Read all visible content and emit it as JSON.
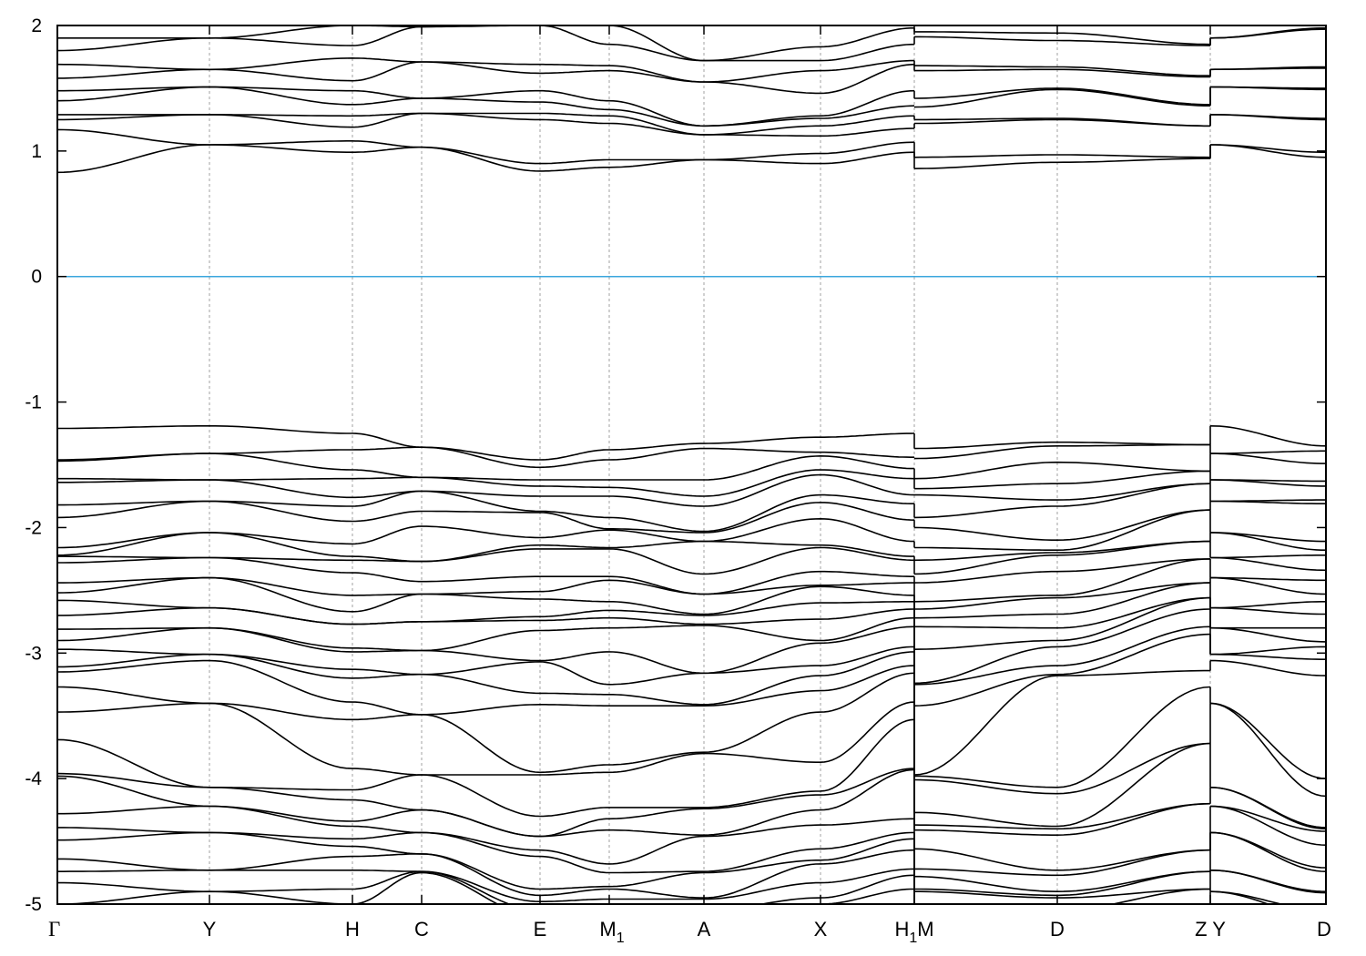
{
  "chart_data": {
    "type": "line",
    "title": "",
    "xlabel": "",
    "ylabel": "",
    "ylim": [
      -5,
      2
    ],
    "xlim": [
      0,
      13.93
    ],
    "grid": "vertical dotted lines at high-symmetry points",
    "legend": "none",
    "band_color": "#000000",
    "fermi_level": 0,
    "fermi_color": "#3aa6dd",
    "grid_color": "#a0a0a0",
    "yticks": [
      {
        "value": 2,
        "label": "2"
      },
      {
        "value": 1,
        "label": "1"
      },
      {
        "value": 0,
        "label": "0"
      },
      {
        "value": -1,
        "label": "-1"
      },
      {
        "value": -2,
        "label": "-2"
      },
      {
        "value": -3,
        "label": "-3"
      },
      {
        "value": -4,
        "label": "-4"
      },
      {
        "value": -5,
        "label": "-5"
      }
    ],
    "xticks": [
      {
        "k": 0.0,
        "label": "Γ",
        "sub": "",
        "suffix": ""
      },
      {
        "k": 1.67,
        "label": "Y",
        "sub": "",
        "suffix": ""
      },
      {
        "k": 3.24,
        "label": "H",
        "sub": "",
        "suffix": ""
      },
      {
        "k": 4.0,
        "label": "C",
        "sub": "",
        "suffix": ""
      },
      {
        "k": 5.3,
        "label": "E",
        "sub": "",
        "suffix": ""
      },
      {
        "k": 6.06,
        "label": "M",
        "sub": "1",
        "suffix": ""
      },
      {
        "k": 7.1,
        "label": "A",
        "sub": "",
        "suffix": ""
      },
      {
        "k": 8.38,
        "label": "X",
        "sub": "",
        "suffix": ""
      },
      {
        "k": 9.41,
        "label": "H",
        "sub": "1",
        "suffix": "M"
      },
      {
        "k": 10.98,
        "label": "D",
        "sub": "",
        "suffix": ""
      },
      {
        "k": 12.66,
        "label": "Z",
        "sub": "",
        "suffix": "Y"
      },
      {
        "k": 13.93,
        "label": "D",
        "sub": "",
        "suffix": ""
      }
    ],
    "segments": [
      {
        "path": [
          "Γ",
          "Y",
          "H",
          "C",
          "E",
          "M1",
          "A",
          "X",
          "H1"
        ],
        "k": [
          0.0,
          1.67,
          3.24,
          4.0,
          5.3,
          6.06,
          7.1,
          8.38,
          9.41
        ],
        "conduction": [
          [
            0.83,
            1.17,
            1.25,
            1.29,
            1.4,
            1.48,
            1.58,
            1.69,
            1.8,
            1.9
          ],
          [
            1.05,
            1.05,
            1.29,
            1.29,
            1.51,
            1.51,
            1.65,
            1.65,
            1.9,
            1.9
          ],
          [
            0.99,
            1.08,
            1.19,
            1.28,
            1.37,
            1.48,
            1.56,
            1.74,
            1.84,
            2.0
          ],
          [
            1.03,
            1.03,
            1.3,
            1.3,
            1.42,
            1.42,
            1.71,
            1.71,
            1.99,
            1.99
          ],
          [
            0.84,
            0.9,
            1.25,
            1.3,
            1.39,
            1.48,
            1.62,
            1.69,
            2.0,
            2.05
          ],
          [
            0.87,
            0.93,
            1.22,
            1.28,
            1.33,
            1.4,
            1.64,
            1.68,
            1.85,
            2.0
          ],
          [
            0.93,
            0.93,
            1.13,
            1.13,
            1.2,
            1.2,
            1.55,
            1.55,
            1.72,
            1.72
          ],
          [
            0.9,
            0.98,
            1.12,
            1.2,
            1.26,
            1.28,
            1.46,
            1.64,
            1.72,
            1.83
          ],
          [
            0.99,
            1.07,
            1.18,
            1.28,
            1.36,
            1.48,
            1.69,
            1.72,
            1.85,
            1.98
          ]
        ],
        "valence": [
          [
            -1.21,
            -1.46,
            -1.47,
            -1.61,
            -1.64,
            -1.82,
            -1.92,
            -2.16,
            -2.22,
            -2.23,
            -2.28,
            -2.44,
            -2.52,
            -2.58,
            -2.7,
            -2.81,
            -2.9,
            -2.97,
            -3.11,
            -3.15,
            -3.27,
            -3.47,
            -3.69,
            -3.96,
            -3.98,
            -4.28,
            -4.39,
            -4.49,
            -4.64,
            -4.74,
            -4.83,
            -5.0
          ],
          [
            -1.19,
            -1.41,
            -1.41,
            -1.62,
            -1.62,
            -1.79,
            -1.79,
            -2.04,
            -2.04,
            -2.24,
            -2.24,
            -2.4,
            -2.4,
            -2.64,
            -2.64,
            -2.8,
            -2.8,
            -3.01,
            -3.01,
            -3.06,
            -3.4,
            -3.4,
            -4.07,
            -4.07,
            -4.22,
            -4.22,
            -4.43,
            -4.43,
            -4.73,
            -4.73,
            -4.9,
            -4.9
          ],
          [
            -1.25,
            -1.38,
            -1.54,
            -1.61,
            -1.76,
            -1.83,
            -1.95,
            -2.13,
            -2.23,
            -2.26,
            -2.36,
            -2.54,
            -2.67,
            -2.77,
            -2.77,
            -2.96,
            -2.99,
            -3.13,
            -3.2,
            -3.39,
            -3.53,
            -3.92,
            -4.09,
            -4.17,
            -4.34,
            -4.38,
            -4.48,
            -4.54,
            -4.62,
            -4.73,
            -4.88,
            -5.0
          ],
          [
            -1.36,
            -1.36,
            -1.6,
            -1.6,
            -1.71,
            -1.71,
            -1.87,
            -1.99,
            -2.27,
            -2.27,
            -2.43,
            -2.53,
            -2.53,
            -2.75,
            -2.75,
            -2.98,
            -2.98,
            -3.17,
            -3.17,
            -3.49,
            -3.49,
            -3.97,
            -3.97,
            -4.25,
            -4.25,
            -4.43,
            -4.43,
            -4.6,
            -4.6,
            -4.74,
            -4.74,
            -4.75
          ],
          [
            -1.46,
            -1.52,
            -1.62,
            -1.67,
            -1.75,
            -1.87,
            -1.88,
            -2.08,
            -2.14,
            -2.17,
            -2.39,
            -2.51,
            -2.57,
            -2.71,
            -2.74,
            -2.82,
            -3.06,
            -3.07,
            -3.32,
            -3.41,
            -3.95,
            -3.97,
            -4.3,
            -4.46,
            -4.46,
            -4.57,
            -4.62,
            -4.88,
            -4.93,
            -4.98,
            -5.05,
            -5.1
          ],
          [
            -1.38,
            -1.46,
            -1.62,
            -1.68,
            -1.75,
            -1.92,
            -2.01,
            -2.02,
            -2.16,
            -2.17,
            -2.39,
            -2.42,
            -2.59,
            -2.66,
            -2.72,
            -2.8,
            -2.99,
            -3.25,
            -3.33,
            -3.42,
            -3.89,
            -3.95,
            -4.23,
            -4.32,
            -4.41,
            -4.68,
            -4.75,
            -4.86,
            -4.88,
            -4.96,
            -5.05,
            -5.1
          ],
          [
            -1.33,
            -1.37,
            -1.62,
            -1.75,
            -1.83,
            -2.03,
            -2.04,
            -2.11,
            -2.11,
            -2.37,
            -2.53,
            -2.53,
            -2.69,
            -2.7,
            -2.77,
            -2.78,
            -3.16,
            -3.16,
            -3.41,
            -3.42,
            -3.79,
            -3.8,
            -4.23,
            -4.24,
            -4.45,
            -4.46,
            -4.74,
            -4.75,
            -4.95,
            -4.96,
            -5.05,
            -5.1
          ],
          [
            -1.28,
            -1.4,
            -1.43,
            -1.54,
            -1.58,
            -1.74,
            -1.8,
            -1.93,
            -2.14,
            -2.16,
            -2.35,
            -2.46,
            -2.47,
            -2.6,
            -2.73,
            -2.9,
            -2.92,
            -3.1,
            -3.18,
            -3.3,
            -3.47,
            -3.87,
            -4.1,
            -4.13,
            -4.25,
            -4.37,
            -4.56,
            -4.65,
            -4.68,
            -4.83,
            -4.95,
            -5.0
          ],
          [
            -1.25,
            -1.44,
            -1.53,
            -1.61,
            -1.74,
            -1.81,
            -1.94,
            -2.11,
            -2.23,
            -2.26,
            -2.39,
            -2.44,
            -2.54,
            -2.59,
            -2.65,
            -2.72,
            -2.79,
            -2.95,
            -2.99,
            -3.1,
            -3.16,
            -3.39,
            -3.53,
            -3.92,
            -3.93,
            -4.32,
            -4.43,
            -4.48,
            -4.57,
            -4.72,
            -4.77,
            -4.88
          ]
        ]
      },
      {
        "path": [
          "M",
          "D",
          "Z"
        ],
        "k": [
          9.41,
          10.98,
          12.66
        ],
        "conduction": [
          [
            0.86,
            0.95,
            1.22,
            1.25,
            1.35,
            1.42,
            1.64,
            1.68,
            1.91,
            1.95
          ],
          [
            0.91,
            0.97,
            1.25,
            1.26,
            1.49,
            1.5,
            1.65,
            1.67,
            1.88,
            1.94
          ],
          [
            0.94,
            0.95,
            1.2,
            1.2,
            1.36,
            1.37,
            1.59,
            1.6,
            1.84,
            1.85
          ]
        ],
        "valence": [
          [
            -1.37,
            -1.45,
            -1.61,
            -1.69,
            -1.74,
            -1.92,
            -2.0,
            -2.16,
            -2.26,
            -2.37,
            -2.44,
            -2.59,
            -2.65,
            -2.72,
            -2.79,
            -2.97,
            -3.24,
            -3.25,
            -3.42,
            -3.97,
            -3.98,
            -4.01,
            -4.27,
            -4.37,
            -4.41,
            -4.56,
            -4.72,
            -4.78,
            -4.88,
            -4.9,
            -5.0,
            -5.05
          ],
          [
            -1.32,
            -1.35,
            -1.48,
            -1.65,
            -1.78,
            -1.83,
            -2.1,
            -2.18,
            -2.2,
            -2.22,
            -2.35,
            -2.54,
            -2.56,
            -2.69,
            -2.8,
            -2.9,
            -2.95,
            -3.1,
            -3.17,
            -3.18,
            -4.07,
            -4.12,
            -4.38,
            -4.4,
            -4.45,
            -4.73,
            -4.77,
            -4.9,
            -4.93,
            -4.95,
            -5.05,
            -5.1
          ],
          [
            -1.34,
            -1.34,
            -1.55,
            -1.55,
            -1.65,
            -1.65,
            -1.86,
            -1.86,
            -2.11,
            -2.11,
            -2.25,
            -2.25,
            -2.44,
            -2.44,
            -2.56,
            -2.56,
            -2.65,
            -2.79,
            -2.85,
            -3.14,
            -3.27,
            -3.72,
            -3.72,
            -4.2,
            -4.2,
            -4.57,
            -4.57,
            -4.74,
            -4.74,
            -4.88,
            -4.88,
            -5.05
          ]
        ]
      },
      {
        "path": [
          "Y",
          "D"
        ],
        "k": [
          12.66,
          13.93
        ],
        "conduction": [
          [
            1.05,
            1.05,
            1.29,
            1.29,
            1.51,
            1.51,
            1.65,
            1.65,
            1.9,
            1.9
          ],
          [
            0.95,
            0.99,
            1.25,
            1.26,
            1.49,
            1.5,
            1.66,
            1.67,
            1.97,
            1.98
          ]
        ],
        "valence": [
          [
            -1.19,
            -1.41,
            -1.41,
            -1.62,
            -1.62,
            -1.79,
            -1.79,
            -2.04,
            -2.04,
            -2.24,
            -2.24,
            -2.4,
            -2.4,
            -2.64,
            -2.64,
            -2.8,
            -2.8,
            -3.01,
            -3.01,
            -3.06,
            -3.4,
            -3.4,
            -4.07,
            -4.07,
            -4.22,
            -4.22,
            -4.43,
            -4.43,
            -4.73,
            -4.73,
            -4.9,
            -4.9
          ],
          [
            -1.35,
            -1.39,
            -1.49,
            -1.63,
            -1.67,
            -1.78,
            -1.81,
            -2.11,
            -2.18,
            -2.22,
            -2.34,
            -2.42,
            -2.53,
            -2.59,
            -2.69,
            -2.8,
            -2.91,
            -2.95,
            -3.05,
            -3.18,
            -4.0,
            -4.14,
            -4.39,
            -4.4,
            -4.42,
            -4.53,
            -4.71,
            -4.74,
            -4.9,
            -4.91,
            -5.05,
            -5.1
          ]
        ]
      }
    ]
  }
}
